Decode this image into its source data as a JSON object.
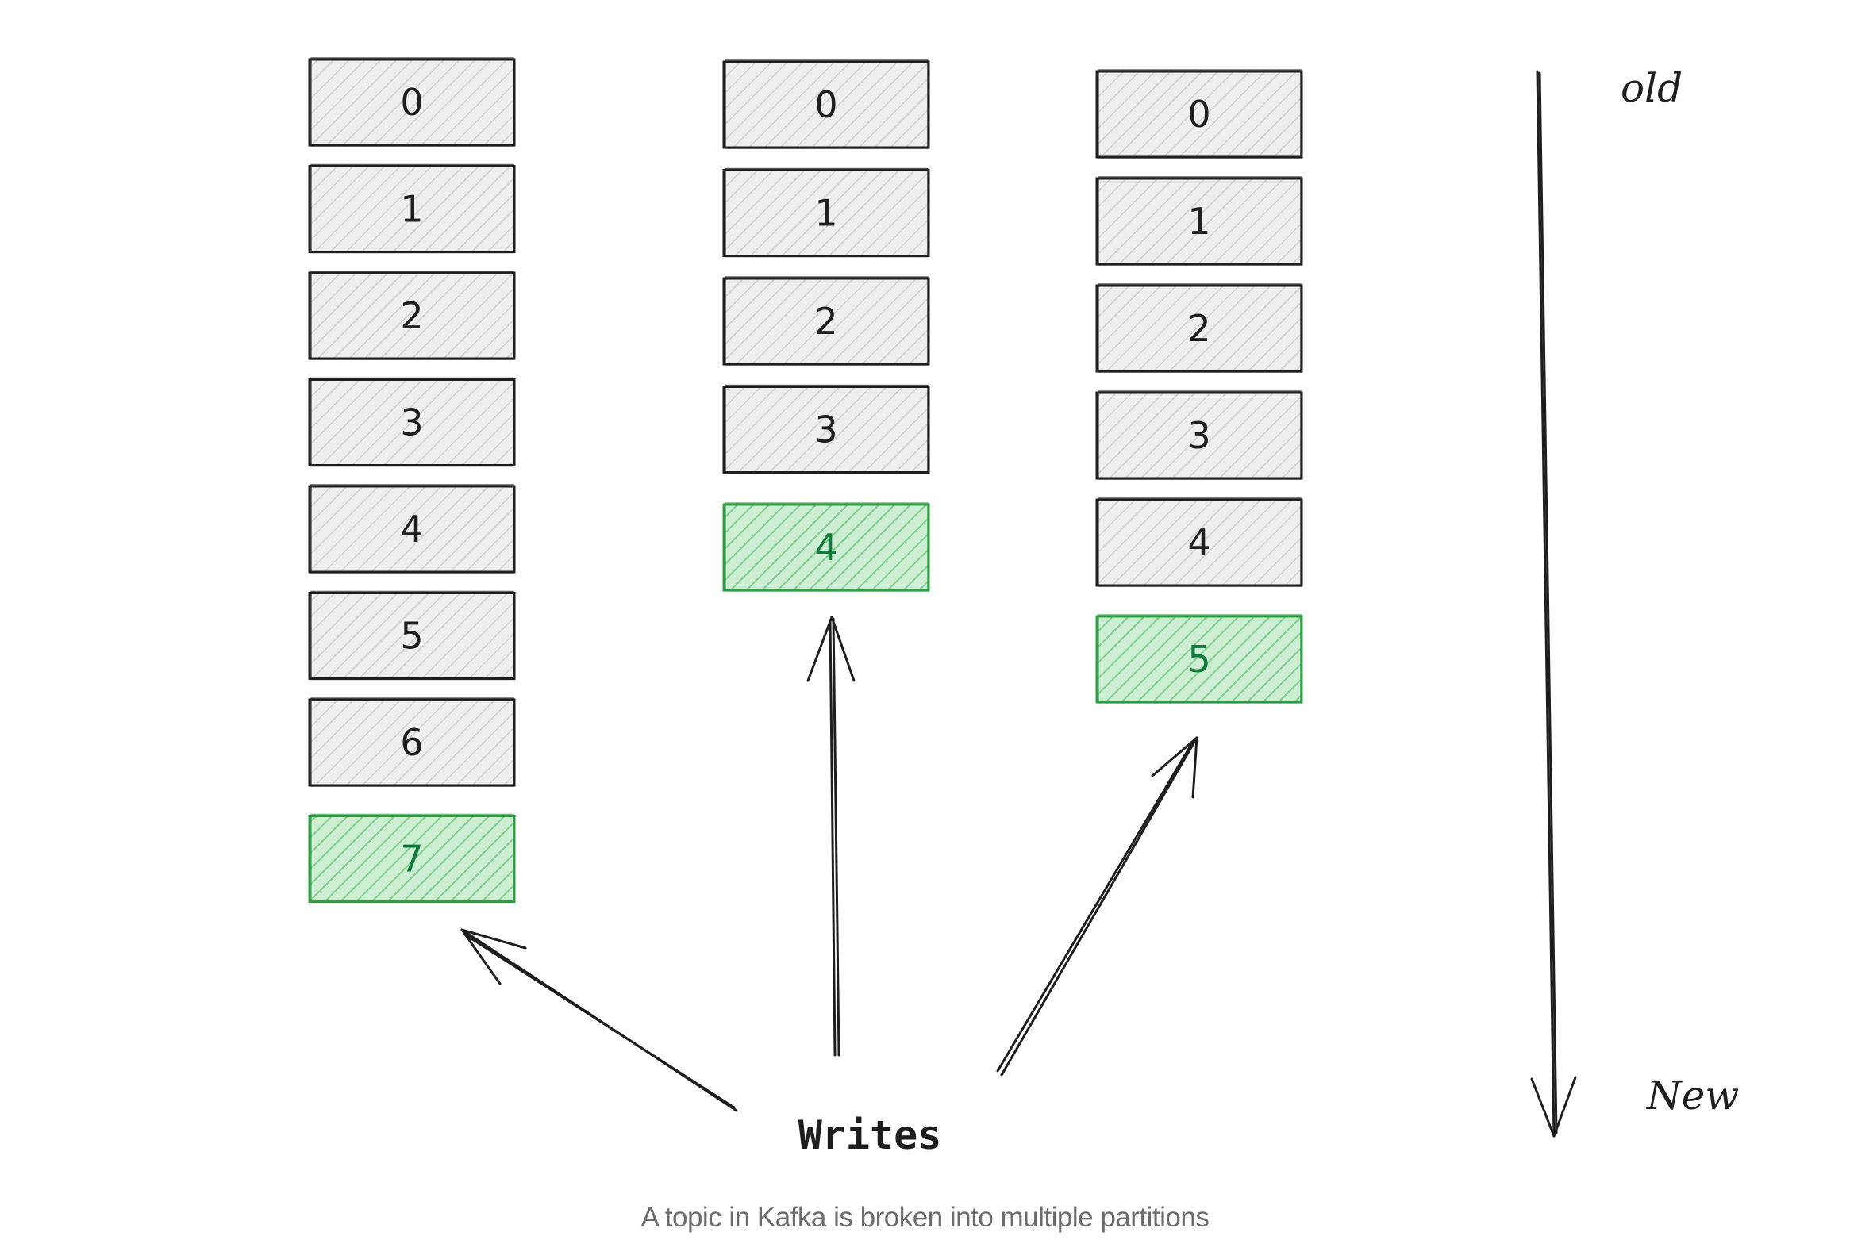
{
  "diagram": {
    "partitions": [
      {
        "offsets": [
          "0",
          "1",
          "2",
          "3",
          "4",
          "5",
          "6",
          "7"
        ],
        "new_offset": "7"
      },
      {
        "offsets": [
          "0",
          "1",
          "2",
          "3",
          "4"
        ],
        "new_offset": "4"
      },
      {
        "offsets": [
          "0",
          "1",
          "2",
          "3",
          "4",
          "5"
        ],
        "new_offset": "5"
      }
    ],
    "writes_label": "Writes",
    "axis": {
      "old_label": "old",
      "new_label": "New"
    },
    "colors": {
      "old_fill": "#e9e9e9",
      "old_stroke": "#1e1e1e",
      "new_fill": "#b2f2bb",
      "new_stroke": "#2f9e44",
      "new_text": "#0f7a3a",
      "old_text": "#1e1e1e"
    }
  },
  "caption": "A topic in Kafka is broken into multiple partitions"
}
